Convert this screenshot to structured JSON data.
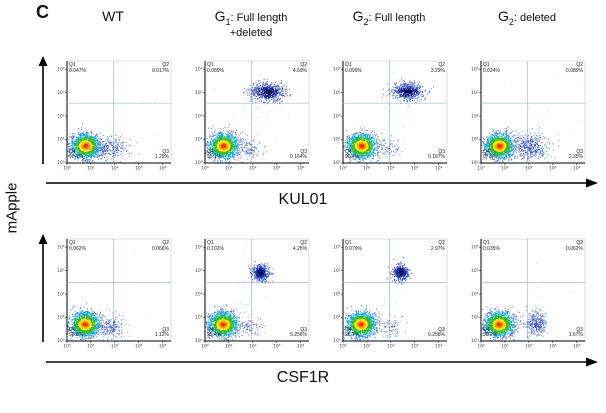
{
  "panel_label": "C",
  "y_axis_label": "mApple",
  "rows": [
    {
      "x_axis_label": "KUL01"
    },
    {
      "x_axis_label": "CSF1R"
    }
  ],
  "headers": [
    {
      "prefix": "WT",
      "sub": "",
      "suffix": "",
      "line2": ""
    },
    {
      "prefix": "G",
      "sub": "1",
      "suffix": ": Full length",
      "line2": "+deleted"
    },
    {
      "prefix": "G",
      "sub": "2",
      "suffix": ": Full length",
      "line2": ""
    },
    {
      "prefix": "G",
      "sub": "2",
      "suffix": ": deleted",
      "line2": ""
    }
  ],
  "chart_data": {
    "type": "scatter",
    "subtype": "flow-cytometry-pseudocolor",
    "x_scale": "log",
    "y_scale": "log",
    "x_range": [
      1,
      20000
    ],
    "y_range": [
      1,
      20000
    ],
    "units": "log10",
    "y_ticks": [
      "10⁰",
      "10¹",
      "10²",
      "10³",
      "10⁴"
    ],
    "x_ticks": [
      "10⁰",
      "10¹",
      "10²",
      "10³",
      "10⁴"
    ],
    "plots": [
      {
        "condition": "WT",
        "x_marker": "KUL01",
        "y_marker": "mApple",
        "quadrants": {
          "q1": "Q1\n0.047%",
          "q2": "Q2\n0.017%",
          "q3": "Q3\n1.29%",
          "q4": "Q4\n98.7%"
        },
        "quadrant_percentages": {
          "Q1": 0.047,
          "Q2": 0.017,
          "Q3": 1.29,
          "Q4": 98.7
        },
        "dividers": {
          "x_log": 1.95,
          "y_log": 2.55
        },
        "populations": [
          {
            "style": "heat",
            "cx": 0.78,
            "cy": 0.72,
            "sx": 0.3,
            "sy": 0.26,
            "n": 1500
          },
          {
            "style": "blue",
            "cx": 1.8,
            "cy": 0.62,
            "sx": 0.42,
            "sy": 0.26,
            "n": 240
          },
          {
            "style": "stray",
            "cx": 2.2,
            "cy": 1.7,
            "sx": 1.0,
            "sy": 1.0,
            "n": 14
          }
        ]
      },
      {
        "condition": "G1: Full length +deleted",
        "x_marker": "KUL01",
        "y_marker": "mApple",
        "quadrants": {
          "q1": "Q1\n0.089%",
          "q2": "Q2\n4.69%",
          "q3": "Q3\n0.164%",
          "q4": "Q4\n95.1%"
        },
        "quadrant_percentages": {
          "Q1": 0.089,
          "Q2": 4.69,
          "Q3": 0.164,
          "Q4": 95.1
        },
        "dividers": {
          "x_log": 1.95,
          "y_log": 2.55
        },
        "populations": [
          {
            "style": "heat",
            "cx": 0.78,
            "cy": 0.72,
            "sx": 0.3,
            "sy": 0.26,
            "n": 1500
          },
          {
            "style": "navy",
            "cx": 2.62,
            "cy": 3.02,
            "sx": 0.36,
            "sy": 0.19,
            "n": 650
          },
          {
            "style": "stray",
            "cx": 2.2,
            "cy": 2.2,
            "sx": 0.55,
            "sy": 0.65,
            "n": 40
          },
          {
            "style": "blue",
            "cx": 1.85,
            "cy": 0.62,
            "sx": 0.3,
            "sy": 0.24,
            "n": 90
          }
        ]
      },
      {
        "condition": "G2: Full length",
        "x_marker": "KUL01",
        "y_marker": "mApple",
        "quadrants": {
          "q1": "Q1\n0.099%",
          "q2": "Q2\n3.29%",
          "q3": "Q3\n0.167%",
          "q4": "Q4\n96.4%"
        },
        "quadrant_percentages": {
          "Q1": 0.099,
          "Q2": 3.29,
          "Q3": 0.167,
          "Q4": 96.4
        },
        "dividers": {
          "x_log": 1.95,
          "y_log": 2.55
        },
        "populations": [
          {
            "style": "heat",
            "cx": 0.78,
            "cy": 0.72,
            "sx": 0.3,
            "sy": 0.26,
            "n": 1500
          },
          {
            "style": "navy",
            "cx": 2.72,
            "cy": 3.05,
            "sx": 0.32,
            "sy": 0.18,
            "n": 600
          },
          {
            "style": "stray",
            "cx": 2.3,
            "cy": 2.2,
            "sx": 0.5,
            "sy": 0.6,
            "n": 35
          },
          {
            "style": "blue",
            "cx": 1.9,
            "cy": 0.6,
            "sx": 0.3,
            "sy": 0.24,
            "n": 70
          }
        ]
      },
      {
        "condition": "G2: deleted",
        "x_marker": "KUL01",
        "y_marker": "mApple",
        "quadrants": {
          "q1": "Q1\n0.024%",
          "q2": "Q2\n0.089%",
          "q3": "Q3\n2.35%",
          "q4": "Q4\n97.5%"
        },
        "quadrant_percentages": {
          "Q1": 0.024,
          "Q2": 0.089,
          "Q3": 2.35,
          "Q4": 97.5
        },
        "dividers": {
          "x_log": 1.95,
          "y_log": 2.55
        },
        "populations": [
          {
            "style": "heat",
            "cx": 0.78,
            "cy": 0.72,
            "sx": 0.3,
            "sy": 0.26,
            "n": 1500
          },
          {
            "style": "blue",
            "cx": 2.05,
            "cy": 0.68,
            "sx": 0.42,
            "sy": 0.32,
            "n": 430
          },
          {
            "style": "stray",
            "cx": 2.5,
            "cy": 1.8,
            "sx": 0.8,
            "sy": 0.8,
            "n": 12
          }
        ]
      },
      {
        "condition": "WT",
        "x_marker": "CSF1R",
        "y_marker": "mApple",
        "quadrants": {
          "q1": "Q1\n0.062%",
          "q2": "Q2\n0.066%",
          "q3": "Q3\n1.12%",
          "q4": "Q4\n98.8%"
        },
        "quadrant_percentages": {
          "Q1": 0.062,
          "Q2": 0.066,
          "Q3": 1.12,
          "Q4": 98.8
        },
        "dividers": {
          "x_log": 1.95,
          "y_log": 2.5
        },
        "populations": [
          {
            "style": "heat",
            "cx": 0.76,
            "cy": 0.7,
            "sx": 0.3,
            "sy": 0.26,
            "n": 1500
          },
          {
            "style": "blue",
            "cx": 1.75,
            "cy": 0.6,
            "sx": 0.36,
            "sy": 0.27,
            "n": 190
          },
          {
            "style": "stray",
            "cx": 2.2,
            "cy": 1.6,
            "sx": 1.0,
            "sy": 1.0,
            "n": 12
          }
        ]
      },
      {
        "condition": "G1: Full length +deleted",
        "x_marker": "CSF1R",
        "y_marker": "mApple",
        "quadrants": {
          "q1": "Q1\n0.102%",
          "q2": "Q2\n4.25%",
          "q3": "Q3\n0.256%",
          "q4": "Q4\n95.4%"
        },
        "quadrant_percentages": {
          "Q1": 0.102,
          "Q2": 4.25,
          "Q3": 0.256,
          "Q4": 95.4
        },
        "dividers": {
          "x_log": 1.95,
          "y_log": 2.5
        },
        "populations": [
          {
            "style": "heat",
            "cx": 0.76,
            "cy": 0.7,
            "sx": 0.3,
            "sy": 0.26,
            "n": 1500
          },
          {
            "style": "navy",
            "cx": 2.32,
            "cy": 2.92,
            "sx": 0.17,
            "sy": 0.17,
            "n": 520
          },
          {
            "style": "stray",
            "cx": 1.7,
            "cy": 2.1,
            "sx": 0.25,
            "sy": 0.7,
            "n": 30
          },
          {
            "style": "blue",
            "cx": 1.95,
            "cy": 0.62,
            "sx": 0.26,
            "sy": 0.22,
            "n": 70
          }
        ]
      },
      {
        "condition": "G2: Full length",
        "x_marker": "CSF1R",
        "y_marker": "mApple",
        "quadrants": {
          "q1": "Q1\n0.079%",
          "q2": "Q2\n2.97%",
          "q3": "Q3\n0.258%",
          "q4": "Q4\n96.7%"
        },
        "quadrant_percentages": {
          "Q1": 0.079,
          "Q2": 2.97,
          "Q3": 0.258,
          "Q4": 96.7
        },
        "dividers": {
          "x_log": 1.95,
          "y_log": 2.5
        },
        "populations": [
          {
            "style": "heat",
            "cx": 0.76,
            "cy": 0.7,
            "sx": 0.3,
            "sy": 0.26,
            "n": 1500
          },
          {
            "style": "navy",
            "cx": 2.42,
            "cy": 2.92,
            "sx": 0.17,
            "sy": 0.17,
            "n": 480
          },
          {
            "style": "stray",
            "cx": 1.9,
            "cy": 2.1,
            "sx": 0.3,
            "sy": 0.7,
            "n": 26
          },
          {
            "style": "blue",
            "cx": 2.0,
            "cy": 0.6,
            "sx": 0.25,
            "sy": 0.22,
            "n": 60
          }
        ]
      },
      {
        "condition": "G2: deleted",
        "x_marker": "CSF1R",
        "y_marker": "mApple",
        "quadrants": {
          "q1": "Q1\n0.035%",
          "q2": "Q2\n0.062%",
          "q3": "Q3\n1.67%",
          "q4": "Q4\n98.2%"
        },
        "quadrant_percentages": {
          "Q1": 0.035,
          "Q2": 0.062,
          "Q3": 1.67,
          "Q4": 98.2
        },
        "dividers": {
          "x_log": 1.95,
          "y_log": 2.5
        },
        "populations": [
          {
            "style": "heat",
            "cx": 0.76,
            "cy": 0.7,
            "sx": 0.3,
            "sy": 0.26,
            "n": 1500
          },
          {
            "style": "blue",
            "cx": 2.28,
            "cy": 0.74,
            "sx": 0.23,
            "sy": 0.26,
            "n": 330
          },
          {
            "style": "stray",
            "cx": 2.5,
            "cy": 1.6,
            "sx": 0.6,
            "sy": 0.8,
            "n": 10
          }
        ]
      }
    ]
  }
}
